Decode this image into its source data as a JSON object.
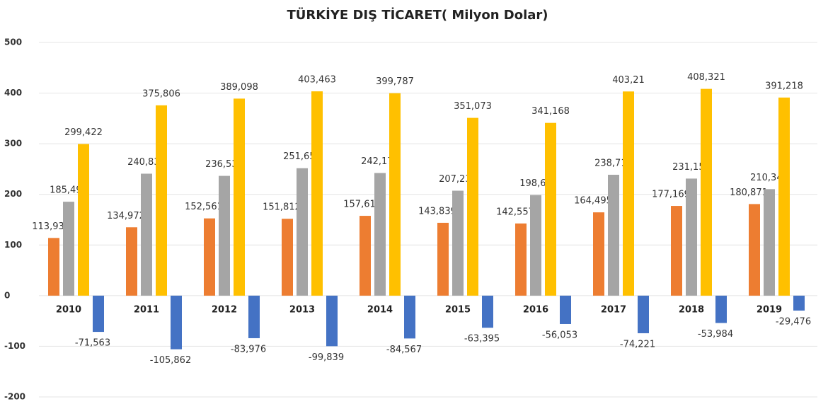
{
  "chart_data": {
    "type": "bar",
    "title": "TÜRKİYE DIŞ TİCARET( Milyon Dolar)",
    "categories": [
      "2010",
      "2011",
      "2012",
      "2013",
      "2014",
      "2015",
      "2016",
      "2017",
      "2018",
      "2019"
    ],
    "series": [
      {
        "color": "#ed7d31",
        "values": [
          113.93,
          134.972,
          152.561,
          151.812,
          157.61,
          143.839,
          142.557,
          164.495,
          177.169,
          180.871
        ],
        "value_labels": [
          "113,93",
          "134,972",
          "152,561",
          "151,812",
          "157,61",
          "143,839",
          "142,557",
          "164,495",
          "177,169",
          "180,871"
        ]
      },
      {
        "color": "#a5a5a5",
        "values": [
          185.493,
          240.834,
          236.537,
          251.651,
          242.177,
          207.234,
          198.61,
          238.715,
          231.152,
          210.347
        ],
        "value_labels": [
          "185,493",
          "240,834",
          "236,537",
          "251,651",
          "242,177",
          "207,234",
          "198,61",
          "238,715",
          "231,152",
          "210,347"
        ]
      },
      {
        "color": "#ffc000",
        "values": [
          299.422,
          375.806,
          389.098,
          403.463,
          399.787,
          351.073,
          341.168,
          403.21,
          408.321,
          391.218
        ],
        "value_labels": [
          "299,422",
          "375,806",
          "389,098",
          "403,463",
          "399,787",
          "351,073",
          "341,168",
          "403,21",
          "408,321",
          "391,218"
        ]
      },
      {
        "color": "#4472c4",
        "values": [
          -71.563,
          -105.862,
          -83.976,
          -99.839,
          -84.567,
          -63.395,
          -56.053,
          -74.221,
          -53.984,
          -29.476
        ],
        "value_labels": [
          "-71,563",
          "-105,862",
          "-83,976",
          "-99,839",
          "-84,567",
          "-63,395",
          "-56,053",
          "-74,221",
          "-53,984",
          "-29,476"
        ]
      }
    ],
    "ylim": [
      -200,
      500
    ],
    "yticks": [
      500,
      400,
      300,
      200,
      100,
      0,
      -100,
      -200
    ],
    "grid": true
  }
}
